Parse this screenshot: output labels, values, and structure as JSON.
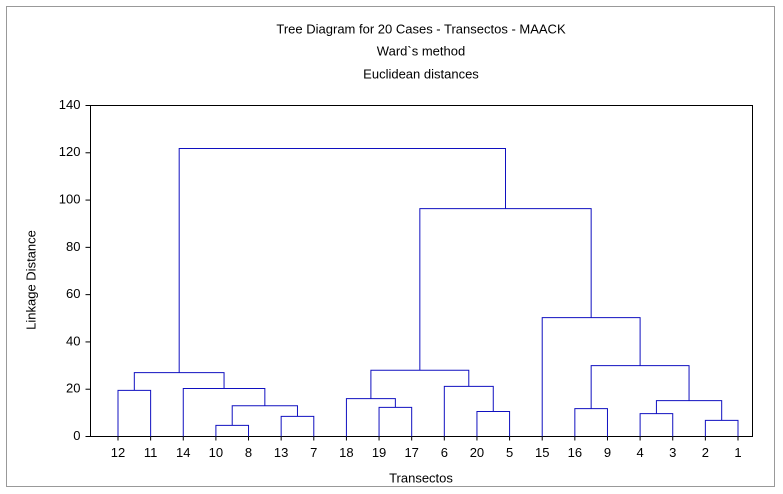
{
  "chart_data": {
    "type": "dendrogram",
    "title": "Tree Diagram for 20 Cases - Transectos - MAACK",
    "subtitle": [
      "Ward`s method",
      "Euclidean distances"
    ],
    "xlabel": "Transectos",
    "ylabel": "Linkage Distance",
    "ylim": [
      0,
      140
    ],
    "yticks": [
      0,
      20,
      40,
      60,
      80,
      100,
      120,
      140
    ],
    "color": "#1010c0",
    "tree": {
      "height": 121.8,
      "children": [
        {
          "height": 27,
          "children": [
            {
              "height": 19.5,
              "children": [
                {
                  "label": "12"
                },
                {
                  "label": "11"
                }
              ]
            },
            {
              "height": 20.3,
              "children": [
                {
                  "label": "14"
                },
                {
                  "height": 13,
                  "children": [
                    {
                      "height": 4.7,
                      "children": [
                        {
                          "label": "10"
                        },
                        {
                          "label": "8"
                        }
                      ]
                    },
                    {
                      "height": 8.5,
                      "children": [
                        {
                          "label": "13"
                        },
                        {
                          "label": "7"
                        }
                      ]
                    }
                  ]
                }
              ]
            }
          ]
        },
        {
          "height": 96.4,
          "children": [
            {
              "height": 28,
              "children": [
                {
                  "height": 16,
                  "children": [
                    {
                      "label": "18"
                    },
                    {
                      "height": 12.3,
                      "children": [
                        {
                          "label": "19"
                        },
                        {
                          "label": "17"
                        }
                      ]
                    }
                  ]
                },
                {
                  "height": 21.2,
                  "children": [
                    {
                      "label": "6"
                    },
                    {
                      "height": 10.6,
                      "children": [
                        {
                          "label": "20"
                        },
                        {
                          "label": "5"
                        }
                      ]
                    }
                  ]
                }
              ]
            },
            {
              "height": 50.3,
              "children": [
                {
                  "label": "15"
                },
                {
                  "height": 30,
                  "children": [
                    {
                      "height": 11.8,
                      "children": [
                        {
                          "label": "16"
                        },
                        {
                          "label": "9"
                        }
                      ]
                    },
                    {
                      "height": 15.2,
                      "children": [
                        {
                          "height": 9.7,
                          "children": [
                            {
                              "label": "4"
                            },
                            {
                              "label": "3"
                            }
                          ]
                        },
                        {
                          "height": 6.8,
                          "children": [
                            {
                              "label": "2"
                            },
                            {
                              "label": "1"
                            }
                          ]
                        }
                      ]
                    }
                  ]
                }
              ]
            }
          ]
        }
      ]
    }
  }
}
